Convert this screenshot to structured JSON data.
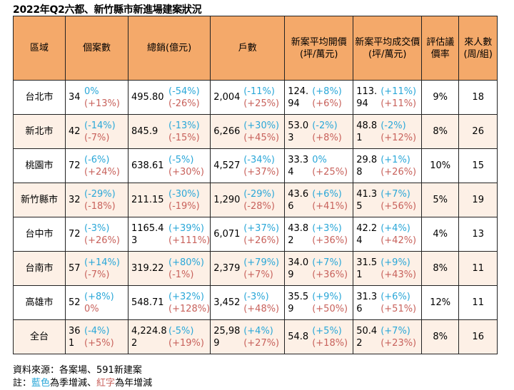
{
  "title": "2022年Q2六都、新竹縣市新進場建案狀況",
  "headers": [
    "區域",
    "個案數",
    "總銷(億元)",
    "戶數",
    "新案平均開價(坪/萬元)",
    "新案平均成交價(坪/萬元)",
    "評估議價率",
    "來人數(周/組)"
  ],
  "rows": [
    {
      "region": "台北市",
      "cases": "34",
      "cases_q": "0%",
      "cases_y": "(+13%)",
      "sales": "495.80",
      "sales_q": "(-54%)",
      "sales_y": "(-26%)",
      "units": "2,004",
      "units_q": "(-11%)",
      "units_y": "(+25%)",
      "ask": "124.94",
      "ask_q": "(+8%)",
      "ask_y": "(+6%)",
      "deal": "113.94",
      "deal_q": "(+11%)",
      "deal_y": "(+11%)",
      "rate": "9%",
      "visitors": "18"
    },
    {
      "region": "新北市",
      "cases": "42",
      "cases_q": "(-14%)",
      "cases_y": "(-7%)",
      "sales": "845.9",
      "sales_q": "(-13%)",
      "sales_y": "(-15%)",
      "units": "6,266",
      "units_q": "(+30%)",
      "units_y": "(+45%)",
      "ask": "53.03",
      "ask_q": "(-2%)",
      "ask_y": "(+8%)",
      "deal": "48.81",
      "deal_q": "(-2%)",
      "deal_y": "(+12%)",
      "rate": "8%",
      "visitors": "26"
    },
    {
      "region": "桃園市",
      "cases": "72",
      "cases_q": "(-6%)",
      "cases_y": "(+24%)",
      "sales": "638.61",
      "sales_q": "(-5%)",
      "sales_y": "(+30%)",
      "units": "4,527",
      "units_q": "(-34%)",
      "units_y": "(+37%)",
      "ask": "33.34",
      "ask_q": "0%",
      "ask_y": "(+25%)",
      "deal": "29.88",
      "deal_q": "(+1%)",
      "deal_y": "(+26%)",
      "rate": "10%",
      "visitors": "15"
    },
    {
      "region": "新竹縣市",
      "cases": "32",
      "cases_q": "(-29%)",
      "cases_y": "(-18%)",
      "sales": "211.15",
      "sales_q": "(-30%)",
      "sales_y": "(-19%)",
      "units": "1,290",
      "units_q": "(-29%)",
      "units_y": "(-28%)",
      "ask": "43.66",
      "ask_q": "(+6%)",
      "ask_y": "(+41%)",
      "deal": "41.35",
      "deal_q": "(+7%)",
      "deal_y": "(+56%)",
      "rate": "5%",
      "visitors": "19"
    },
    {
      "region": "台中市",
      "cases": "72",
      "cases_q": "(-3%)",
      "cases_y": "(+26%)",
      "sales": "1165.43",
      "sales_q": "(+39%)",
      "sales_y": "(+111%)",
      "units": "6,071",
      "units_q": "(+37%)",
      "units_y": "(+26%)",
      "ask": "43.82",
      "ask_q": "(+3%)",
      "ask_y": "(+36%)",
      "deal": "42.24",
      "deal_q": "(+4%)",
      "deal_y": "(+42%)",
      "rate": "4%",
      "visitors": "13"
    },
    {
      "region": "台南市",
      "cases": "57",
      "cases_q": "(+14%)",
      "cases_y": "(-7%)",
      "sales": "319.22",
      "sales_q": "(+80%)",
      "sales_y": "(-1%)",
      "units": "2,379",
      "units_q": "(+79%)",
      "units_y": "(+7%)",
      "ask": "34.09",
      "ask_q": "(+7%)",
      "ask_y": "(+36%)",
      "deal": "31.51",
      "deal_q": "(+9%)",
      "deal_y": "(+43%)",
      "rate": "8%",
      "visitors": "11"
    },
    {
      "region": "高雄市",
      "cases": "52",
      "cases_q": "(+8%)",
      "cases_y": "0%",
      "sales": "548.71",
      "sales_q": "(+32%)",
      "sales_y": "(+128%)",
      "units": "3,452",
      "units_q": "(-3%)",
      "units_y": "(+48%)",
      "ask": "35.59",
      "ask_q": "(+9%)",
      "ask_y": "(+50%)",
      "deal": "31.36",
      "deal_q": "(+6%)",
      "deal_y": "(+51%)",
      "rate": "12%",
      "visitors": "11"
    },
    {
      "region": "全台",
      "cases": "361",
      "cases_q": "(-4%)",
      "cases_y": "(+5%)",
      "sales": "4,224.82",
      "sales_q": "(-5%)",
      "sales_y": "(+19%)",
      "units": "25,989",
      "units_q": "(+4%)",
      "units_y": "(+27%)",
      "ask": "54.8",
      "ask_q": "(+5%)",
      "ask_y": "(+18%)",
      "deal": "50.42",
      "deal_q": "(+7%)",
      "deal_y": "(+23%)",
      "rate": "8%",
      "visitors": "16"
    }
  ],
  "footer": {
    "source": "資料來源：各案場、591新建案",
    "note_prefix": "註：",
    "note_blue": "藍色",
    "note_mid": "為季增減、",
    "note_red": "紅字",
    "note_suffix": "為年增減"
  },
  "colors": {
    "header_bg": "#f4a96a",
    "shade_bg": "#fdf0e6",
    "quarter_change": "#2aa7d8",
    "year_change": "#c8625c"
  }
}
